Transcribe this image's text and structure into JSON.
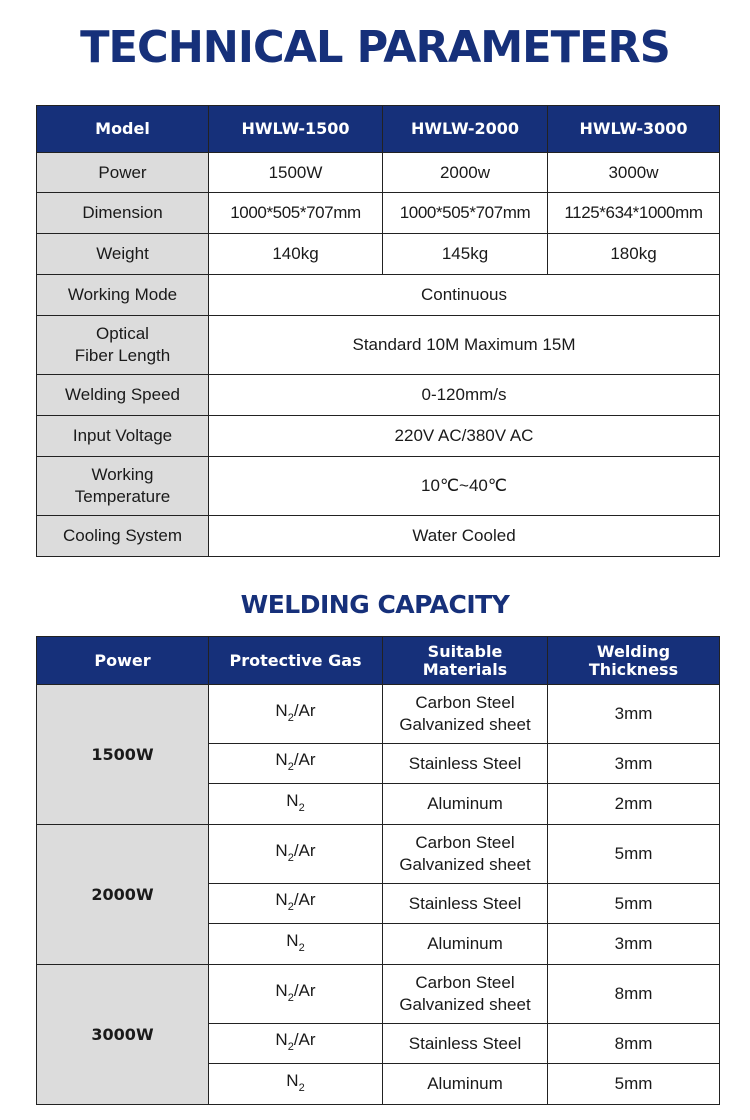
{
  "title": "TECHNICAL PARAMETERS",
  "params": {
    "headers": [
      "Model",
      "HWLW-1500",
      "HWLW-2000",
      "HWLW-3000"
    ],
    "rows": [
      {
        "label": "Power",
        "values": [
          "1500W",
          "2000w",
          "3000w"
        ]
      },
      {
        "label": "Dimension",
        "values": [
          "1000*505*707mm",
          "1000*505*707mm",
          "1125*634*1000mm"
        ]
      },
      {
        "label": "Weight",
        "values": [
          "140kg",
          "145kg",
          "180kg"
        ]
      },
      {
        "label": "Working Mode",
        "value": "Continuous"
      },
      {
        "label": "Optical\nFiber Length",
        "value": "Standard 10M Maximum 15M"
      },
      {
        "label": "Welding Speed",
        "value": "0-120mm/s"
      },
      {
        "label": "Input Voltage",
        "value": "220V AC/380V AC"
      },
      {
        "label": "Working\nTemperature",
        "value": "10℃~40℃"
      },
      {
        "label": "Cooling System",
        "value": "Water Cooled"
      }
    ]
  },
  "capacity_title": "WELDING CAPACITY",
  "capacity": {
    "headers": [
      "Power",
      "Protective Gas",
      "Suitable\nMaterials",
      "Welding\nThickness"
    ],
    "groups": [
      {
        "power": "1500W",
        "rows": [
          {
            "gas": {
              "base": "N",
              "sub": "2",
              "rest": "/Ar"
            },
            "material": "Carbon Steel\nGalvanized sheet",
            "thickness": "3mm"
          },
          {
            "gas": {
              "base": "N",
              "sub": "2",
              "rest": "/Ar"
            },
            "material": "Stainless Steel",
            "thickness": "3mm"
          },
          {
            "gas": {
              "base": "N",
              "sub": "2",
              "rest": ""
            },
            "material": "Aluminum",
            "thickness": "2mm"
          }
        ]
      },
      {
        "power": "2000W",
        "rows": [
          {
            "gas": {
              "base": "N",
              "sub": "2",
              "rest": "/Ar"
            },
            "material": "Carbon Steel\nGalvanized sheet",
            "thickness": "5mm"
          },
          {
            "gas": {
              "base": "N",
              "sub": "2",
              "rest": "/Ar"
            },
            "material": "Stainless Steel",
            "thickness": "5mm"
          },
          {
            "gas": {
              "base": "N",
              "sub": "2",
              "rest": ""
            },
            "material": "Aluminum",
            "thickness": "3mm"
          }
        ]
      },
      {
        "power": "3000W",
        "rows": [
          {
            "gas": {
              "base": "N",
              "sub": "2",
              "rest": "/Ar"
            },
            "material": "Carbon Steel\nGalvanized sheet",
            "thickness": "8mm"
          },
          {
            "gas": {
              "base": "N",
              "sub": "2",
              "rest": "/Ar"
            },
            "material": "Stainless Steel",
            "thickness": "8mm"
          },
          {
            "gas": {
              "base": "N",
              "sub": "2",
              "rest": ""
            },
            "material": "Aluminum",
            "thickness": "5mm"
          }
        ]
      }
    ]
  },
  "colors": {
    "header_bg": "#16307a",
    "label_bg": "#dcdcdc",
    "title": "#16307a"
  }
}
